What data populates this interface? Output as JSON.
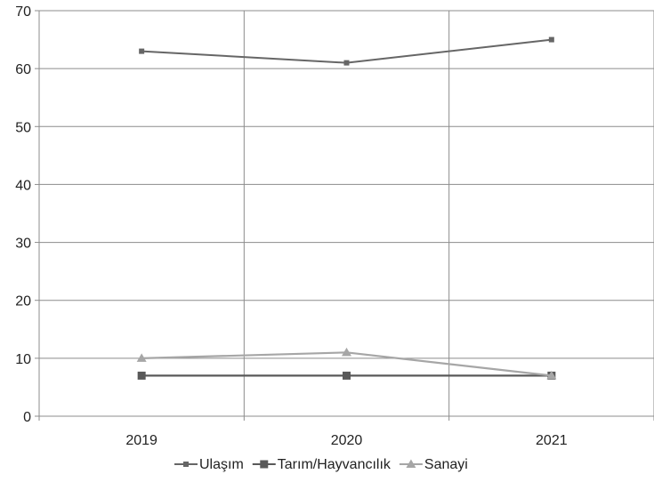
{
  "chart_data": {
    "type": "line",
    "title": "",
    "xlabel": "",
    "ylabel": "",
    "categories": [
      "2019",
      "2020",
      "2021"
    ],
    "ylim": [
      0,
      70
    ],
    "yticks": [
      0,
      10,
      20,
      30,
      40,
      50,
      60,
      70
    ],
    "grid": "vertical and horizontal",
    "legend_position": "bottom",
    "series": [
      {
        "name": "Ulaşım",
        "values": [
          63,
          61,
          65
        ],
        "color": "#666666",
        "marker": "small-square"
      },
      {
        "name": "Tarım/Hayvancılık",
        "values": [
          7,
          7,
          7
        ],
        "color": "#595959",
        "marker": "square"
      },
      {
        "name": "Sanayi",
        "values": [
          10,
          11,
          7
        ],
        "color": "#a6a6a6",
        "marker": "triangle"
      }
    ]
  }
}
